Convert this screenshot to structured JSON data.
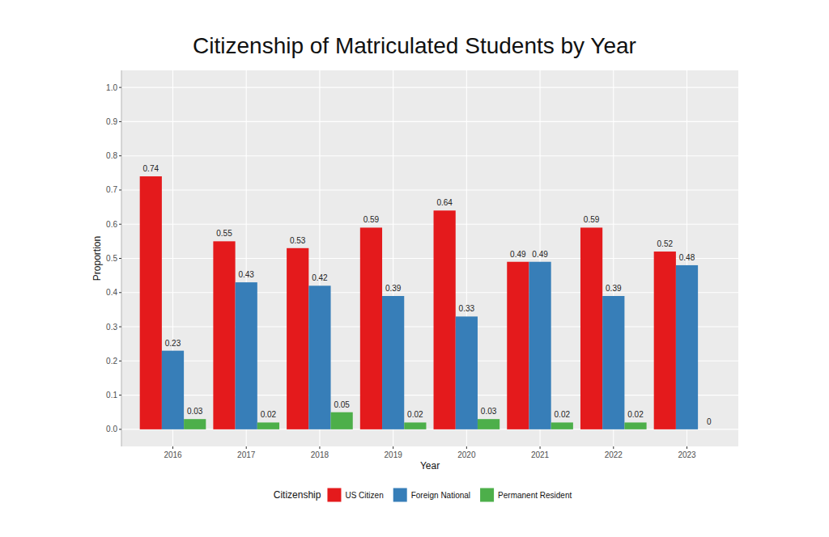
{
  "chart_data": {
    "type": "bar",
    "title": "Citizenship of Matriculated Students by Year",
    "x_label": "Year",
    "y_label": "Proportion",
    "legend_title": "Citizenship",
    "categories": [
      "2016",
      "2017",
      "2018",
      "2019",
      "2020",
      "2021",
      "2022",
      "2023"
    ],
    "series": [
      {
        "name": "US Citizen",
        "color": "#e41a1c",
        "values": [
          0.74,
          0.55,
          0.53,
          0.59,
          0.64,
          0.49,
          0.59,
          0.52
        ]
      },
      {
        "name": "Foreign National",
        "color": "#377eb8",
        "values": [
          0.23,
          0.43,
          0.42,
          0.39,
          0.33,
          0.49,
          0.39,
          0.48
        ]
      },
      {
        "name": "Permanent Resident",
        "color": "#4daf4a",
        "values": [
          0.03,
          0.02,
          0.05,
          0.02,
          0.03,
          0.02,
          0.02,
          0
        ]
      }
    ],
    "ylim": [
      -0.05,
      1.05
    ],
    "yticks": [
      {
        "value": 0,
        "label": "0.0"
      },
      0.1,
      0.2,
      0.3,
      0.4,
      0.5,
      0.6,
      0.7,
      0.8,
      0.9,
      {
        "value": 1,
        "label": "1.0"
      }
    ],
    "grid": true,
    "legend": "bottom",
    "data_labels": true
  }
}
